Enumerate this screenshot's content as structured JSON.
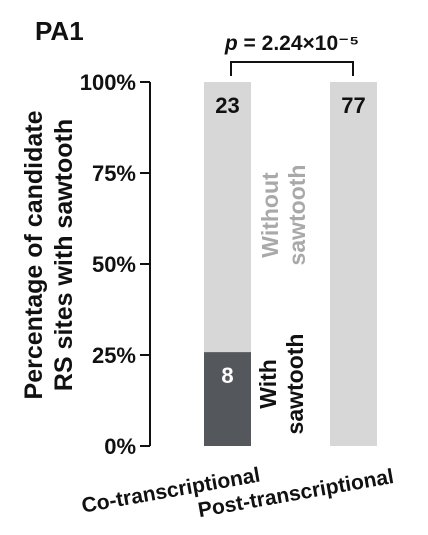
{
  "chart_data": {
    "type": "bar",
    "stacked": true,
    "panel_label": "PA1",
    "ylabel_line1": "Percentage of candidate",
    "ylabel_line2": "RS sites with sawtooth",
    "yticks": [
      "0%",
      "25%",
      "50%",
      "75%",
      "100%"
    ],
    "ylim": [
      0,
      100
    ],
    "categories": [
      "Co-transcriptional",
      "Post-transcriptional"
    ],
    "series": [
      {
        "name": "With sawtooth",
        "counts": [
          8,
          0
        ],
        "color": "#54575b"
      },
      {
        "name": "Without sawtooth",
        "counts": [
          23,
          77
        ],
        "color": "#d7d7d7"
      }
    ],
    "annotations": {
      "with_line1": "With",
      "with_line2": "sawtooth",
      "without_line1": "Without",
      "without_line2": "sawtooth",
      "pvalue_label": "p",
      "pvalue_text": " = 2.24×10⁻⁵"
    },
    "grid": false,
    "legend": "none"
  }
}
